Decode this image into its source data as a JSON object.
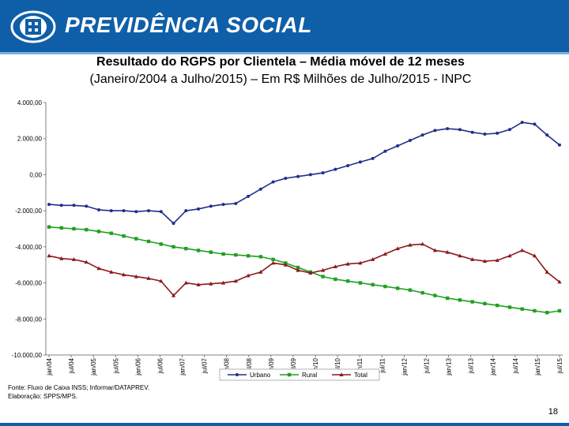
{
  "header": {
    "brand": "PREVIDÊNCIA SOCIAL"
  },
  "title_line1": "Resultado do RGPS por Clientela – Média móvel de 12 meses",
  "title_line2": "(Janeiro/2004 a Julho/2015) – Em R$ Milhões de Julho/2015 - INPC",
  "footnote": {
    "line1": "Fonte: Fluxo de Caixa INSS; Informar/DATAPREV.",
    "line2": "Elaboração: SPPS/MPS."
  },
  "page_number": "18",
  "colors": {
    "header": "#0f5fa8",
    "urbano": "#1f2f8a",
    "rural": "#1fa020",
    "total": "#8b1a1a"
  },
  "chart_data": {
    "type": "line",
    "title": "Resultado do RGPS por Clientela – Média móvel de 12 meses",
    "ylim": [
      -10000,
      4000
    ],
    "yticks": [
      4000,
      2000,
      0,
      -2000,
      -4000,
      -6000,
      -8000,
      -10000
    ],
    "ytick_labels": [
      "4.000,00",
      "2.000,00",
      "0,00",
      "-2.000,00",
      "-4.000,00",
      "-6.000,00",
      "-8.000,00",
      "-10.000,00"
    ],
    "x_labels": [
      "jan/04",
      "jul/04",
      "jan/05",
      "jul/05",
      "jan/06",
      "jul/06",
      "jan/07",
      "jul/07",
      "jan/08",
      "jul/08",
      "jan/09",
      "jul/09",
      "jan/10",
      "jul/10",
      "jan/11",
      "jul/11",
      "jan/12",
      "jul/12",
      "jan/13",
      "jul/13",
      "jan/14",
      "jul/14",
      "jan/15",
      "jul/15"
    ],
    "series": [
      {
        "name": "Urbano",
        "color": "#1f2f8a",
        "marker": "circle",
        "values": [
          -1650,
          -1700,
          -1700,
          -1750,
          -1950,
          -2000,
          -2000,
          -2050,
          -2000,
          -2050,
          -2700,
          -2000,
          -1900,
          -1750,
          -1650,
          -1600,
          -1200,
          -800,
          -400,
          -200,
          -100,
          0,
          100,
          300,
          500,
          700,
          900,
          1300,
          1600,
          1900,
          2200,
          2450,
          2550,
          2500,
          2350,
          2250,
          2300,
          2500,
          2900,
          2800,
          2200,
          1650
        ]
      },
      {
        "name": "Rural",
        "color": "#1fa020",
        "marker": "square",
        "values": [
          -2900,
          -2950,
          -3000,
          -3050,
          -3150,
          -3250,
          -3400,
          -3550,
          -3700,
          -3850,
          -4000,
          -4100,
          -4200,
          -4300,
          -4400,
          -4450,
          -4500,
          -4550,
          -4700,
          -4900,
          -5150,
          -5400,
          -5650,
          -5800,
          -5900,
          -6000,
          -6100,
          -6200,
          -6300,
          -6400,
          -6550,
          -6700,
          -6850,
          -6950,
          -7050,
          -7150,
          -7250,
          -7350,
          -7450,
          -7550,
          -7650,
          -7550
        ]
      },
      {
        "name": "Total",
        "color": "#8b1a1a",
        "marker": "triangle",
        "values": [
          -4500,
          -4650,
          -4700,
          -4850,
          -5200,
          -5400,
          -5550,
          -5650,
          -5750,
          -5900,
          -6700,
          -6000,
          -6100,
          -6050,
          -6000,
          -5900,
          -5600,
          -5400,
          -4900,
          -5000,
          -5300,
          -5450,
          -5300,
          -5100,
          -4950,
          -4900,
          -4700,
          -4400,
          -4100,
          -3900,
          -3850,
          -4200,
          -4300,
          -4500,
          -4700,
          -4800,
          -4750,
          -4500,
          -4200,
          -4500,
          -5400,
          -5950
        ]
      }
    ],
    "legend": [
      "Urbano",
      "Rural",
      "Total"
    ],
    "legend_position": "bottom"
  }
}
